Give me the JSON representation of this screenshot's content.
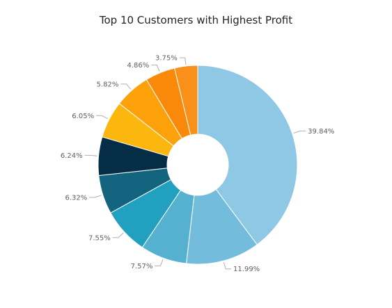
{
  "chart_data": {
    "type": "pie",
    "title": "Top 10 Customers with Highest Profit",
    "donut": true,
    "values": [
      39.84,
      11.99,
      7.57,
      7.55,
      6.32,
      6.24,
      6.05,
      5.82,
      4.86,
      3.75
    ],
    "labels": [
      "39.84%",
      "11.99%",
      "7.57%",
      "7.55%",
      "6.32%",
      "6.24%",
      "6.05%",
      "5.82%",
      "4.86%",
      "3.75%"
    ],
    "colors": [
      "#8fc8e4",
      "#74bcdc",
      "#56b1d1",
      "#21a0c0",
      "#12647f",
      "#052d45",
      "#fbb70e",
      "#fca10a",
      "#f98908",
      "#f8901a"
    ]
  }
}
